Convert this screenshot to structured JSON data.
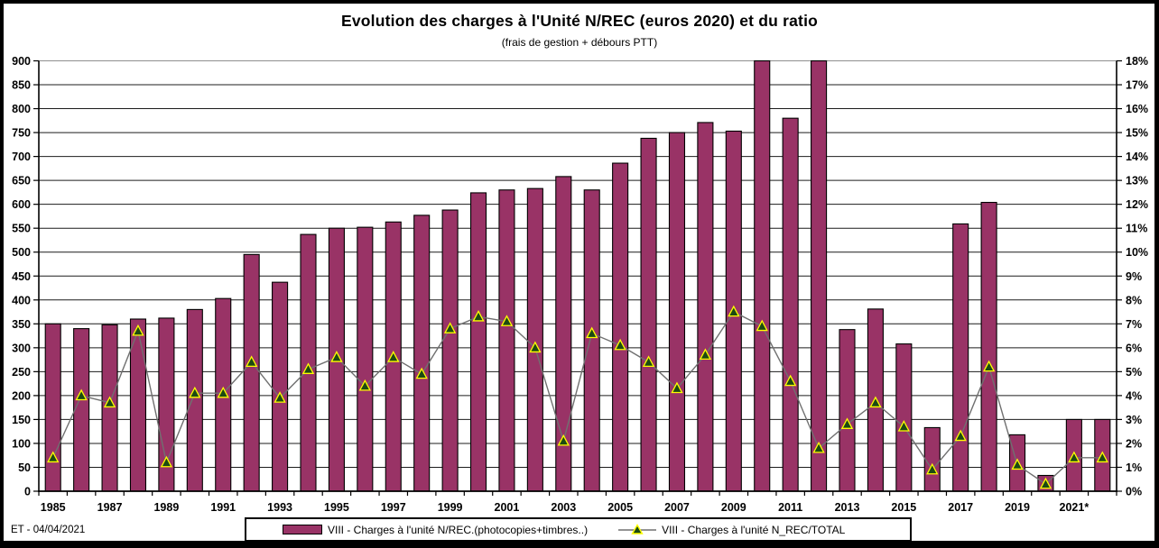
{
  "window": {
    "footer_note": "ET - 04/04/2021"
  },
  "chart_data": {
    "type": "bar",
    "combo": "bar + line (dual axis)",
    "title": "Evolution des charges à l'Unité N/REC (euros 2020) et du ratio",
    "subtitle": "(frais de gestion + débours PTT)",
    "x": [
      1985,
      1986,
      1987,
      1988,
      1989,
      1990,
      1991,
      1992,
      1993,
      1994,
      1995,
      1996,
      1997,
      1998,
      1999,
      2000,
      2001,
      2002,
      2003,
      2004,
      2005,
      2006,
      2007,
      2008,
      2009,
      2010,
      2011,
      2012,
      2013,
      2014,
      2015,
      2016,
      2017,
      2018,
      2019,
      2020,
      2021,
      2022
    ],
    "x_tick_labels": [
      "1985",
      "1987",
      "1989",
      "1991",
      "1993",
      "1995",
      "1997",
      "1999",
      "2001",
      "2003",
      "2005",
      "2007",
      "2009",
      "2011",
      "2013",
      "2015",
      "2017",
      "2019",
      "2021*"
    ],
    "left_axis": {
      "min": 0,
      "max": 900,
      "step": 50,
      "tick_labels": [
        "0",
        "50",
        "100",
        "150",
        "200",
        "250",
        "300",
        "350",
        "400",
        "450",
        "500",
        "550",
        "600",
        "650",
        "700",
        "750",
        "800",
        "850",
        "900"
      ]
    },
    "right_axis": {
      "min": 0,
      "max": 18,
      "step": 1,
      "tick_labels": [
        "0%",
        "1%",
        "2%",
        "3%",
        "4%",
        "5%",
        "6%",
        "7%",
        "8%",
        "9%",
        "10%",
        "11%",
        "12%",
        "13%",
        "14%",
        "15%",
        "16%",
        "17%",
        "18%"
      ]
    },
    "grid": "horizontal",
    "legend_position": "bottom",
    "series": [
      {
        "name": "VIII - Charges à l'unité N/REC.(photocopies+timbres..)",
        "type": "bar",
        "axis": "left",
        "color": "#993366",
        "border_color": "#000000",
        "values": [
          350,
          340,
          348,
          360,
          362,
          380,
          403,
          495,
          437,
          537,
          550,
          552,
          563,
          577,
          588,
          624,
          630,
          633,
          658,
          630,
          686,
          738,
          750,
          771,
          753,
          900,
          780,
          900,
          338,
          381,
          308,
          133,
          559,
          604,
          118,
          33,
          150,
          150
        ],
        "note": "2010 and 2012 bars are clipped at the 900 axis maximum"
      },
      {
        "name": "VIII - Charges à l'unité N_REC/TOTAL",
        "type": "line",
        "axis": "right",
        "line_color": "#707070",
        "marker": "triangle",
        "marker_fill": "#1c4a12",
        "marker_edge": "#ffff00",
        "values_percent": [
          1.4,
          4.0,
          3.7,
          6.7,
          1.2,
          4.1,
          4.1,
          5.4,
          3.9,
          5.1,
          5.6,
          4.4,
          5.6,
          4.9,
          6.8,
          7.3,
          7.1,
          6.0,
          2.1,
          6.6,
          6.1,
          5.4,
          4.3,
          5.7,
          7.5,
          6.9,
          4.6,
          1.8,
          2.8,
          3.7,
          2.7,
          0.9,
          2.3,
          5.2,
          1.1,
          0.3,
          1.4,
          1.4
        ]
      }
    ]
  }
}
